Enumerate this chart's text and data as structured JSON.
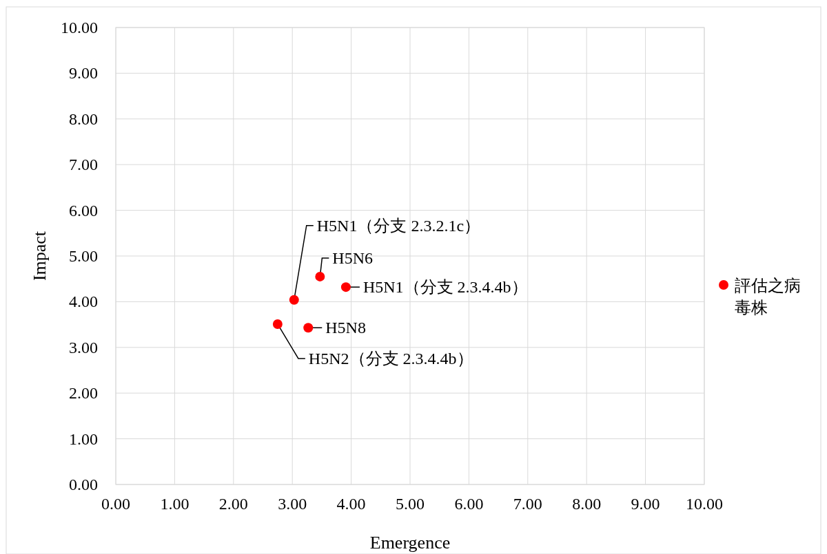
{
  "chart_data": {
    "type": "scatter",
    "xlabel": "Emergence",
    "ylabel": "Impact",
    "x": [
      2.75,
      3.03,
      3.47,
      3.91,
      3.27
    ],
    "series": [
      {
        "name": "評估之病毒株",
        "color": "#ff0000",
        "values": [
          3.51,
          4.04,
          4.55,
          4.32,
          3.43
        ]
      }
    ],
    "xlim": [
      0,
      10
    ],
    "ylim": [
      0,
      10
    ],
    "xticks": [
      {
        "value": 0,
        "label": "0.00"
      },
      {
        "value": 1,
        "label": "1.00"
      },
      {
        "value": 2,
        "label": "2.00"
      },
      {
        "value": 3,
        "label": "3.00"
      },
      {
        "value": 4,
        "label": "4.00"
      },
      {
        "value": 5,
        "label": "5.00"
      },
      {
        "value": 6,
        "label": "6.00"
      },
      {
        "value": 7,
        "label": "7.00"
      },
      {
        "value": 8,
        "label": "8.00"
      },
      {
        "value": 9,
        "label": "9.00"
      },
      {
        "value": 10,
        "label": "10.00"
      }
    ],
    "yticks": [
      {
        "value": 0,
        "label": "0.00"
      },
      {
        "value": 1,
        "label": "1.00"
      },
      {
        "value": 2,
        "label": "2.00"
      },
      {
        "value": 3,
        "label": "3.00"
      },
      {
        "value": 4,
        "label": "4.00"
      },
      {
        "value": 5,
        "label": "5.00"
      },
      {
        "value": 6,
        "label": "6.00"
      },
      {
        "value": 7,
        "label": "7.00"
      },
      {
        "value": 8,
        "label": "8.00"
      },
      {
        "value": 9,
        "label": "9.00"
      },
      {
        "value": 10,
        "label": "10.00"
      }
    ],
    "annotations": [
      {
        "text": "H5N2（分支 2.3.4.4b）",
        "x": 2.75,
        "y": 3.51
      },
      {
        "text": "H5N1（分支 2.3.2.1c）",
        "x": 3.03,
        "y": 4.04
      },
      {
        "text": "H5N6",
        "x": 3.47,
        "y": 4.55
      },
      {
        "text": "H5N1（分支 2.3.4.4b）",
        "x": 3.91,
        "y": 4.32
      },
      {
        "text": "H5N8",
        "x": 3.27,
        "y": 3.43
      }
    ],
    "grid": true,
    "legend": "right",
    "marker": "circle"
  }
}
